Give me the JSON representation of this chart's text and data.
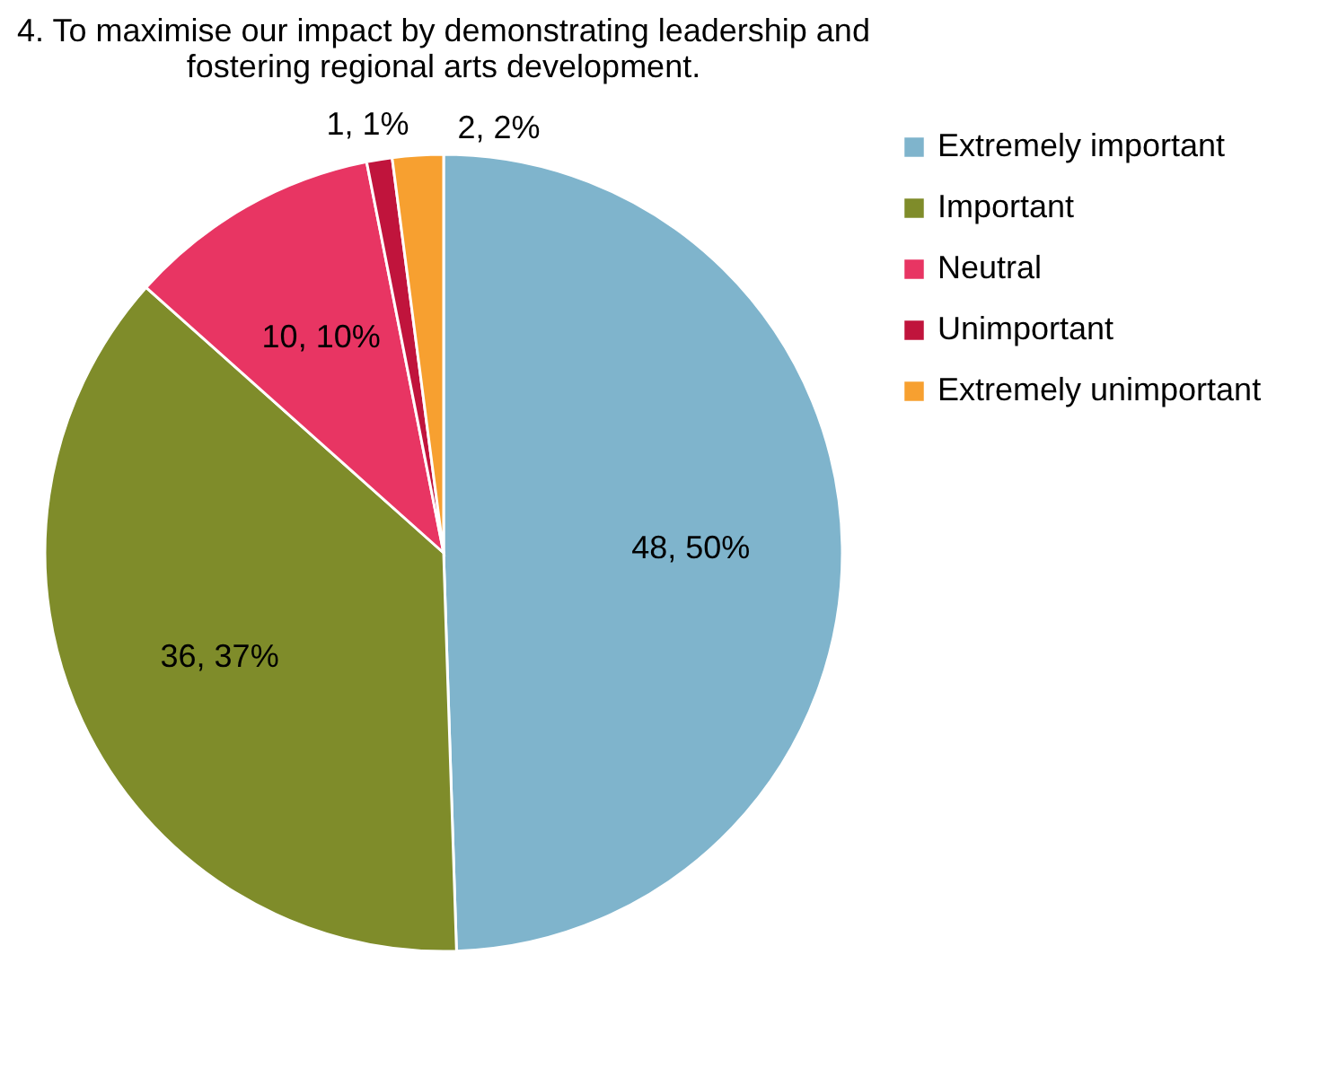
{
  "chart_data": {
    "type": "pie",
    "title": "4. To maximise our impact by demonstrating leadership and fostering regional arts development.",
    "categories": [
      "Extremely important",
      "Important",
      "Neutral",
      "Unimportant",
      "Extremely unimportant"
    ],
    "values": [
      48,
      36,
      10,
      1,
      2
    ],
    "value_labels": [
      "48, 50%",
      "36, 37%",
      "10, 10%",
      "1, 1%",
      "2, 2%"
    ],
    "colors": [
      "#7fb4cc",
      "#7f8c2a",
      "#e83563",
      "#c0143c",
      "#f7a030"
    ],
    "legend": "right"
  }
}
